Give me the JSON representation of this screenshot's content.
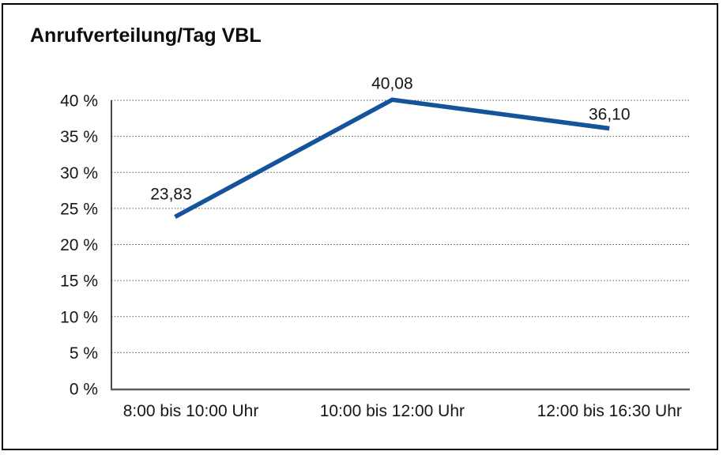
{
  "title": "Anrufverteilung/Tag VBL",
  "chart_data": {
    "type": "line",
    "title": "Anrufverteilung/Tag VBL",
    "categories": [
      "8:00 bis 10:00 Uhr",
      "10:00 bis 12:00 Uhr",
      "12:00 bis 16:30 Uhr"
    ],
    "series": [
      {
        "name": "Anrufverteilung/Tag VBL",
        "values": [
          23.83,
          40.08,
          36.1
        ]
      }
    ],
    "data_labels": [
      "23,83",
      "40,08",
      "36,10"
    ],
    "xlabel": "",
    "ylabel": "",
    "ylim": [
      0,
      40
    ],
    "ytick_step": 5,
    "ytick_labels": [
      "0 %",
      "5 %",
      "10 %",
      "15 %",
      "20 %",
      "25 %",
      "30 %",
      "35 %",
      "40 %"
    ],
    "grid": "horizontal-dotted",
    "legend": "none",
    "colors": {
      "line": "#15539B",
      "grid": "#4a4a4a",
      "x_axis": "#5a5a5a",
      "y_axis": "#1a1a1a",
      "text": "#161616",
      "border": "#000000",
      "background": "#ffffff"
    }
  }
}
